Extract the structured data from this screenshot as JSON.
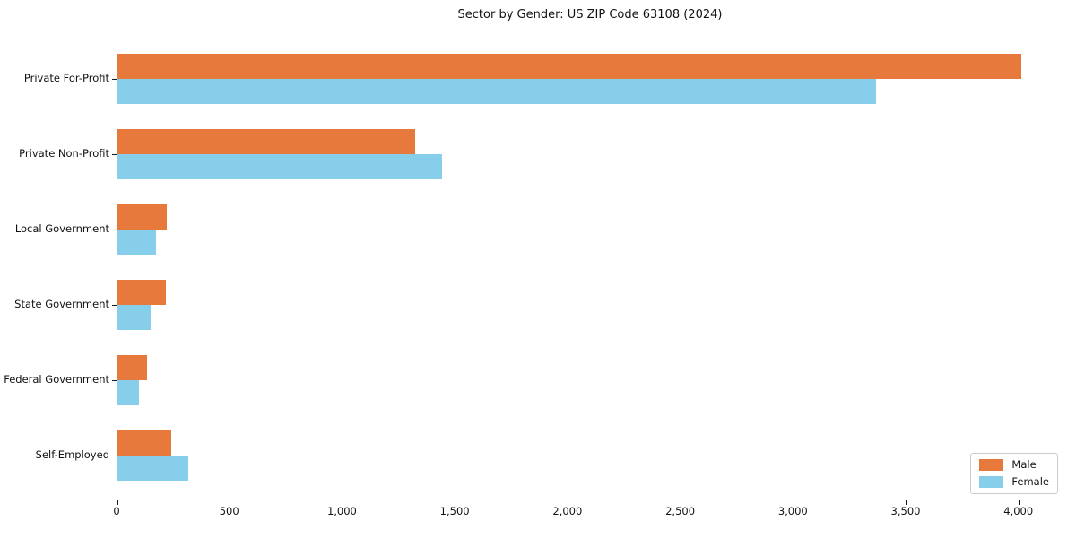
{
  "chart_data": {
    "type": "bar",
    "orientation": "horizontal",
    "title": "Sector by Gender: US ZIP Code 63108 (2024)",
    "categories": [
      "Private For-Profit",
      "Private Non-Profit",
      "Local Government",
      "State Government",
      "Federal Government",
      "Self-Employed"
    ],
    "series": [
      {
        "name": "Male",
        "color": "#E8793C",
        "values": [
          4010,
          1320,
          220,
          215,
          130,
          240
        ]
      },
      {
        "name": "Female",
        "color": "#87CEEB",
        "values": [
          3365,
          1440,
          170,
          145,
          95,
          315
        ]
      }
    ],
    "xlabel": "",
    "ylabel": "",
    "xlim": [
      0,
      4200
    ],
    "xticks": [
      0,
      500,
      1000,
      1500,
      2000,
      2500,
      3000,
      3500,
      4000
    ],
    "xtick_labels": [
      "0",
      "500",
      "1,000",
      "1,500",
      "2,000",
      "2,500",
      "3,000",
      "3,500",
      "4,000"
    ],
    "grid": false,
    "legend_position": "lower right"
  }
}
